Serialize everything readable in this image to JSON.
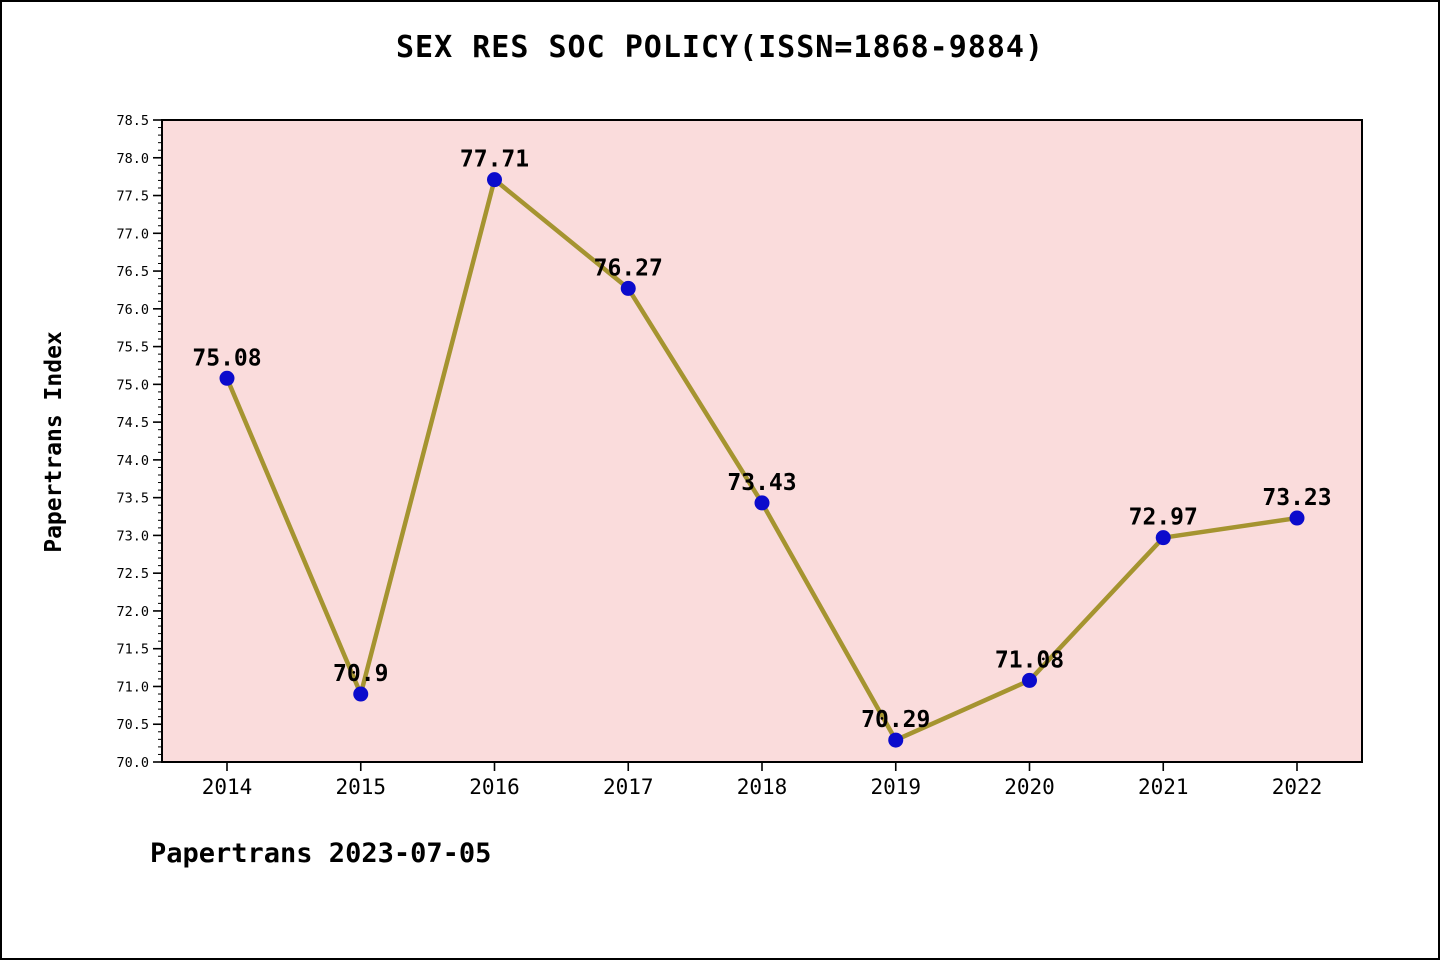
{
  "title": "SEX RES SOC POLICY(ISSN=1868-9884)",
  "footer": "Papertrans 2023-07-05",
  "chart_data": {
    "type": "line",
    "title": "SEX RES SOC POLICY(ISSN=1868-9884)",
    "xlabel": "",
    "ylabel": "Papertrans Index",
    "x": [
      2014,
      2015,
      2016,
      2017,
      2018,
      2019,
      2020,
      2021,
      2022
    ],
    "values": [
      75.08,
      70.9,
      77.71,
      76.27,
      73.43,
      70.29,
      71.08,
      72.97,
      73.23
    ],
    "point_labels": [
      "75.08",
      "70.9",
      "77.71",
      "76.27",
      "73.43",
      "70.29",
      "71.08",
      "72.97",
      "73.23"
    ],
    "ylim": [
      70.0,
      78.5
    ],
    "y_major_step": 0.5,
    "y_minor_step": 0.1,
    "grid": false,
    "legend": "none",
    "annotation": "Papertrans 2023-07-05",
    "colors": {
      "plot_bg": "#fadcdc",
      "line": "#a59430",
      "marker": "#0b0bcc",
      "axis": "#000000",
      "text": "#000000"
    }
  }
}
